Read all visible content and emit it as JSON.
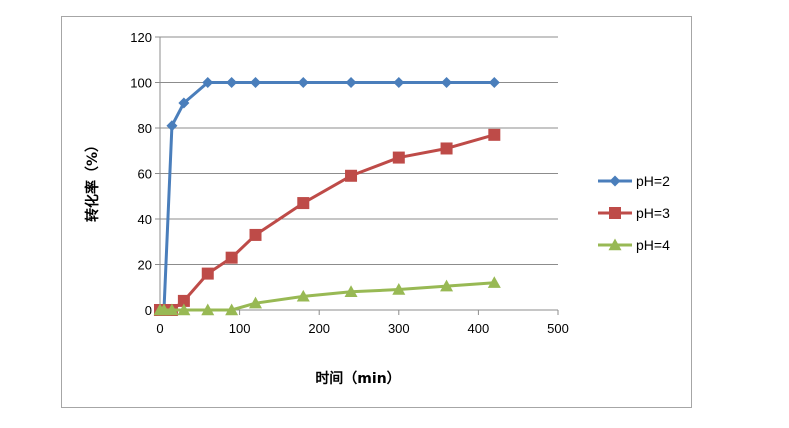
{
  "chart_data": {
    "type": "line",
    "xlabel": "时间（min）",
    "ylabel": "转化率（%）",
    "xlim": [
      0,
      500
    ],
    "ylim": [
      0,
      120
    ],
    "xticks": [
      0,
      100,
      200,
      300,
      400,
      500
    ],
    "yticks": [
      0,
      20,
      40,
      60,
      80,
      100,
      120
    ],
    "grid": "horizontal",
    "legend_position": "right",
    "x": [
      0,
      5,
      15,
      30,
      60,
      90,
      120,
      180,
      240,
      300,
      360,
      420
    ],
    "series": [
      {
        "name": "pH=2",
        "color": "#4a7ebb",
        "marker": "diamond",
        "values": [
          0,
          0,
          81,
          91,
          100,
          100,
          100,
          100,
          100,
          100,
          100,
          100
        ]
      },
      {
        "name": "pH=3",
        "color": "#be4b48",
        "marker": "square",
        "values": [
          0,
          0,
          0,
          4,
          16,
          23,
          33,
          47,
          59,
          67,
          71,
          77
        ]
      },
      {
        "name": "pH=4",
        "color": "#98b954",
        "marker": "triangle",
        "values": [
          0,
          0,
          0,
          0,
          0,
          0,
          3,
          6,
          8,
          9,
          10.5,
          12
        ]
      }
    ]
  }
}
